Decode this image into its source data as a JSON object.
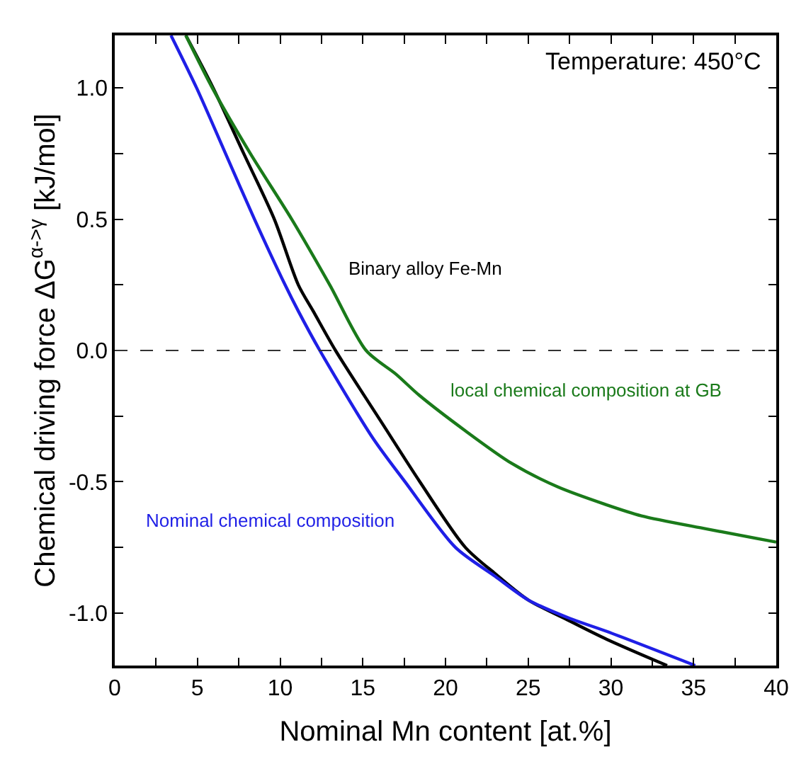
{
  "chart_data": {
    "type": "line",
    "xlabel": "Nominal Mn content [at.%]",
    "ylabel": "Chemical driving force ΔG$^{α->γ}$ [kJ/mol]",
    "xlim": [
      0,
      40
    ],
    "ylim": [
      -1.2,
      1.2
    ],
    "xticks": [
      0,
      {
        "value": 2.5,
        "label": null
      },
      5,
      {
        "value": 7.5,
        "label": null
      },
      10,
      {
        "value": 12.5,
        "label": null
      },
      15,
      {
        "value": 17.5,
        "label": null
      },
      20,
      {
        "value": 22.5,
        "label": null
      },
      25,
      {
        "value": 27.5,
        "label": null
      },
      30,
      {
        "value": 32.5,
        "label": null
      },
      35,
      {
        "value": 37.5,
        "label": null
      },
      40
    ],
    "yticks": [
      {
        "value": -1.0,
        "label": "-1.0"
      },
      {
        "value": -0.75,
        "label": null
      },
      {
        "value": -0.5,
        "label": "-0.5"
      },
      {
        "value": -0.25,
        "label": null
      },
      {
        "value": 0,
        "label": "0.0"
      },
      {
        "value": 0.25,
        "label": null
      },
      {
        "value": 0.5,
        "label": "0.5"
      },
      {
        "value": 0.75,
        "label": null
      },
      {
        "value": 1.0,
        "label": "1.0"
      }
    ],
    "legend": false,
    "marker": "none",
    "line_style": "solid",
    "ref_lines": [
      {
        "axis": "y",
        "value": 0,
        "color": "#333333",
        "line_style": "dashed"
      }
    ],
    "series": [
      {
        "name": "Binary alloy Fe-Mn",
        "color": "#000000",
        "x": [
          4.3,
          5.95,
          7.8,
          9.65,
          11.1,
          12.0,
          13.35,
          16.2,
          18.45,
          21.2,
          23.0,
          25.0,
          27.5,
          29.75,
          33.4
        ],
        "values": [
          1.2,
          1.0,
          0.75,
          0.5,
          0.25,
          0.15,
          0,
          -0.28,
          -0.5,
          -0.75,
          -0.85,
          -0.95,
          -1.03,
          -1.1,
          -1.2
        ]
      },
      {
        "name": "local chemical composition at GB",
        "color": "#1a7a1a",
        "x": [
          4.3,
          5.9,
          8.2,
          10.7,
          13.0,
          15.2,
          17.0,
          18.4,
          21.2,
          24.0,
          26.8,
          29.6,
          31.85,
          35.8,
          40
        ],
        "values": [
          1.2,
          1.0,
          0.75,
          0.5,
          0.25,
          0,
          -0.09,
          -0.17,
          -0.306,
          -0.43,
          -0.52,
          -0.585,
          -0.63,
          -0.68,
          -0.73
        ]
      },
      {
        "name": "Nominal chemical composition",
        "color": "#1f1fe6",
        "x": [
          3.4,
          4.95,
          6.7,
          8.45,
          10.3,
          11.1,
          12.4,
          15.6,
          17.55,
          20.6,
          23.0,
          25.0,
          27.5,
          29.75,
          35.1
        ],
        "values": [
          1.2,
          1.0,
          0.75,
          0.5,
          0.25,
          0.15,
          0,
          -0.333,
          -0.5,
          -0.75,
          -0.86,
          -0.95,
          -1.02,
          -1.07,
          -1.2
        ]
      }
    ],
    "annotations": [
      "Temperature: 450°C"
    ]
  }
}
